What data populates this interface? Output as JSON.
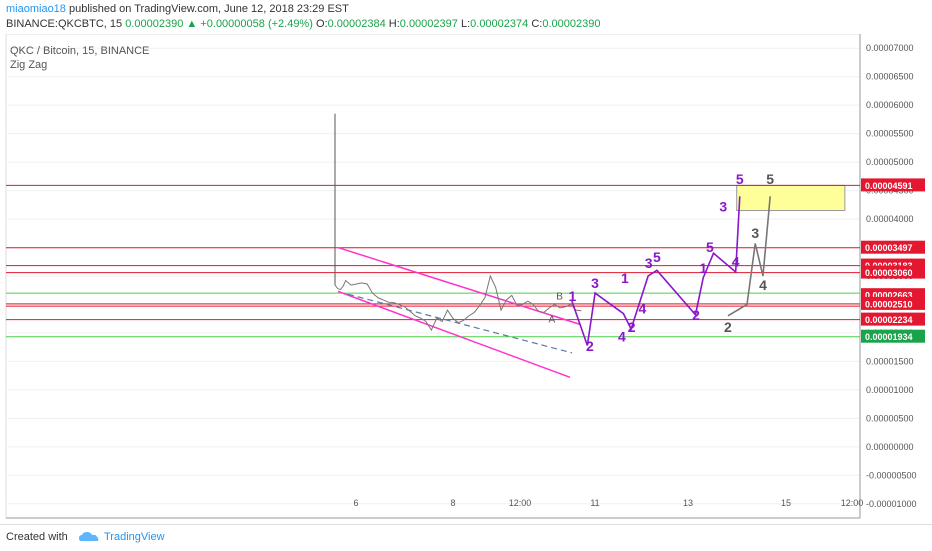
{
  "header": {
    "author": "miaomiao18",
    "published_text": "published on TradingView.com, June 12, 2018 23:29 EST",
    "symbol_line": "BINANCE:QKCBTC, 15",
    "last": "0.00002390",
    "change": "+0.00000058 (+2.49%)",
    "o_label": "O:",
    "o_val": "0.00002384",
    "h_label": "H:",
    "h_val": "0.00002397",
    "l_label": "L:",
    "l_val": "0.00002374",
    "c_label": "C:",
    "c_val": "0.00002390"
  },
  "legend": {
    "title": "QKC / Bitcoin, 15, BINANCE",
    "indicator": "Zig Zag"
  },
  "footer": {
    "created_with": "Created with",
    "brand": "TradingView"
  },
  "colors": {
    "up": "#1aa34a",
    "purple": "#8a17c9",
    "magenta": "#ff33cc",
    "red": "#e3172f",
    "green_line": "#4ccf4c",
    "highlight": "#ffff99",
    "darkgray": "#555555"
  },
  "chart_data": {
    "type": "line",
    "y_axis": {
      "ticks": [
        "0.00007000",
        "0.00006500",
        "0.00006000",
        "0.00005500",
        "0.00005000",
        "0.00004500",
        "0.00004000",
        "0.00003500",
        "0.00003000",
        "0.00002500",
        "0.00002000",
        "0.00001500",
        "0.00001000",
        "0.00000500",
        "0.00000000",
        "-0.00000500",
        "-0.00001000"
      ],
      "range": [
        -1.25e-05,
        7.25e-05
      ]
    },
    "x_axis": {
      "ticks": [
        "6",
        "8",
        "12:00",
        "11",
        "13",
        "15",
        "12:00"
      ]
    },
    "price_labels": [
      {
        "text": "0.00004591",
        "value": 4.591e-05,
        "color": "#e3172f"
      },
      {
        "text": "0.00003497",
        "value": 3.497e-05,
        "color": "#e3172f"
      },
      {
        "text": "0.00003183",
        "value": 3.183e-05,
        "color": "#e3172f"
      },
      {
        "text": "0.00003060",
        "value": 3.06e-05,
        "color": "#e3172f"
      },
      {
        "text": "0.00002663",
        "value": 2.663e-05,
        "color": "#e3172f"
      },
      {
        "text": "0.00002510",
        "value": 2.51e-05,
        "color": "#e3172f"
      },
      {
        "text": "0.00002234",
        "value": 2.234e-05,
        "color": "#e3172f"
      },
      {
        "text": "0.00001934",
        "value": 1.934e-05,
        "color": "#1aa34a"
      }
    ],
    "red_lines": [
      4.591e-05,
      3.497e-05,
      3.183e-05,
      3.06e-05,
      2.51e-05,
      2.47e-05,
      2.234e-05
    ],
    "green_lines": [
      2.7e-05,
      1.934e-05
    ],
    "highlight_box": {
      "x0": 0.78,
      "x1": 0.99,
      "y0": 4.15e-05,
      "y1": 4.591e-05
    },
    "price_series": {
      "x": [
        0.0,
        0.01,
        0.02,
        0.03,
        0.04,
        0.06,
        0.08,
        0.1,
        0.12,
        0.14,
        0.16,
        0.18,
        0.2,
        0.22,
        0.24,
        0.26,
        0.28,
        0.3,
        0.32,
        0.34,
        0.36,
        0.38,
        0.4,
        0.42,
        0.44,
        0.46,
        0.48,
        0.5,
        0.52,
        0.54,
        0.56,
        0.58,
        0.6,
        0.62,
        0.64,
        0.66,
        0.68,
        0.7,
        0.72,
        0.74,
        0.76,
        0.78,
        0.8,
        0.82,
        0.84,
        0.86,
        0.88,
        0.9,
        0.92
      ],
      "y": [
        2.84e-05,
        2.78e-05,
        2.76e-05,
        2.82e-05,
        2.92e-05,
        2.84e-05,
        2.86e-05,
        2.88e-05,
        2.86e-05,
        2.7e-05,
        2.62e-05,
        2.58e-05,
        2.54e-05,
        2.53e-05,
        2.5e-05,
        2.46e-05,
        2.38e-05,
        2.3e-05,
        2.26e-05,
        2.2e-05,
        2.05e-05,
        2.26e-05,
        2.2e-05,
        2.4e-05,
        2.26e-05,
        2.18e-05,
        2.22e-05,
        2.3e-05,
        2.36e-05,
        2.48e-05,
        2.62e-05,
        3e-05,
        2.8e-05,
        2.4e-05,
        2.58e-05,
        2.66e-05,
        2.48e-05,
        2.5e-05,
        2.56e-05,
        2.5e-05,
        2.38e-05,
        2.36e-05,
        2.44e-05,
        2.5e-05,
        2.44e-05,
        2.46e-05,
        2.5e-05,
        2.4e-05,
        2.39e-05
      ]
    },
    "wave_labels": [
      {
        "text": "1",
        "x": 0.461,
        "y": 2.56e-05,
        "color": "#8a17c9"
      },
      {
        "text": "2",
        "x": 0.495,
        "y": 1.68e-05,
        "color": "#8a17c9"
      },
      {
        "text": "3",
        "x": 0.505,
        "y": 2.79e-05,
        "color": "#8a17c9"
      },
      {
        "text": "1",
        "x": 0.563,
        "y": 2.88e-05,
        "color": "#8a17c9"
      },
      {
        "text": "2",
        "x": 0.576,
        "y": 2.02e-05,
        "color": "#8a17c9"
      },
      {
        "text": "3",
        "x": 0.609,
        "y": 3.14e-05,
        "color": "#8a17c9"
      },
      {
        "text": "4",
        "x": 0.597,
        "y": 2.34e-05,
        "color": "#8a17c9"
      },
      {
        "text": "4",
        "x": 0.557,
        "y": 1.85e-05,
        "color": "#8a17c9"
      },
      {
        "text": "5",
        "x": 0.625,
        "y": 3.25e-05,
        "color": "#8a17c9"
      },
      {
        "text": "1",
        "x": 0.715,
        "y": 3.05e-05,
        "color": "#8a17c9"
      },
      {
        "text": "2",
        "x": 0.701,
        "y": 2.23e-05,
        "color": "#8a17c9"
      },
      {
        "text": "5",
        "x": 0.728,
        "y": 3.42e-05,
        "color": "#8a17c9"
      },
      {
        "text": "4",
        "x": 0.778,
        "y": 3.17e-05,
        "color": "#8a17c9"
      },
      {
        "text": "3",
        "x": 0.754,
        "y": 4.13e-05,
        "color": "#8a17c9"
      },
      {
        "text": "5",
        "x": 0.786,
        "y": 4.62e-05,
        "color": "#8a17c9"
      },
      {
        "text": "5",
        "x": 0.845,
        "y": 4.62e-05,
        "color": "#555555"
      },
      {
        "text": "3",
        "x": 0.816,
        "y": 3.67e-05,
        "color": "#555555"
      },
      {
        "text": "4",
        "x": 0.831,
        "y": 2.75e-05,
        "color": "#555555"
      },
      {
        "text": "2",
        "x": 0.763,
        "y": 2.02e-05,
        "color": "#555555"
      },
      {
        "text": "A",
        "x": 0.421,
        "y": 2.18e-05,
        "color": "#555555"
      },
      {
        "text": "B",
        "x": 0.436,
        "y": 2.59e-05,
        "color": "#555555"
      }
    ]
  }
}
